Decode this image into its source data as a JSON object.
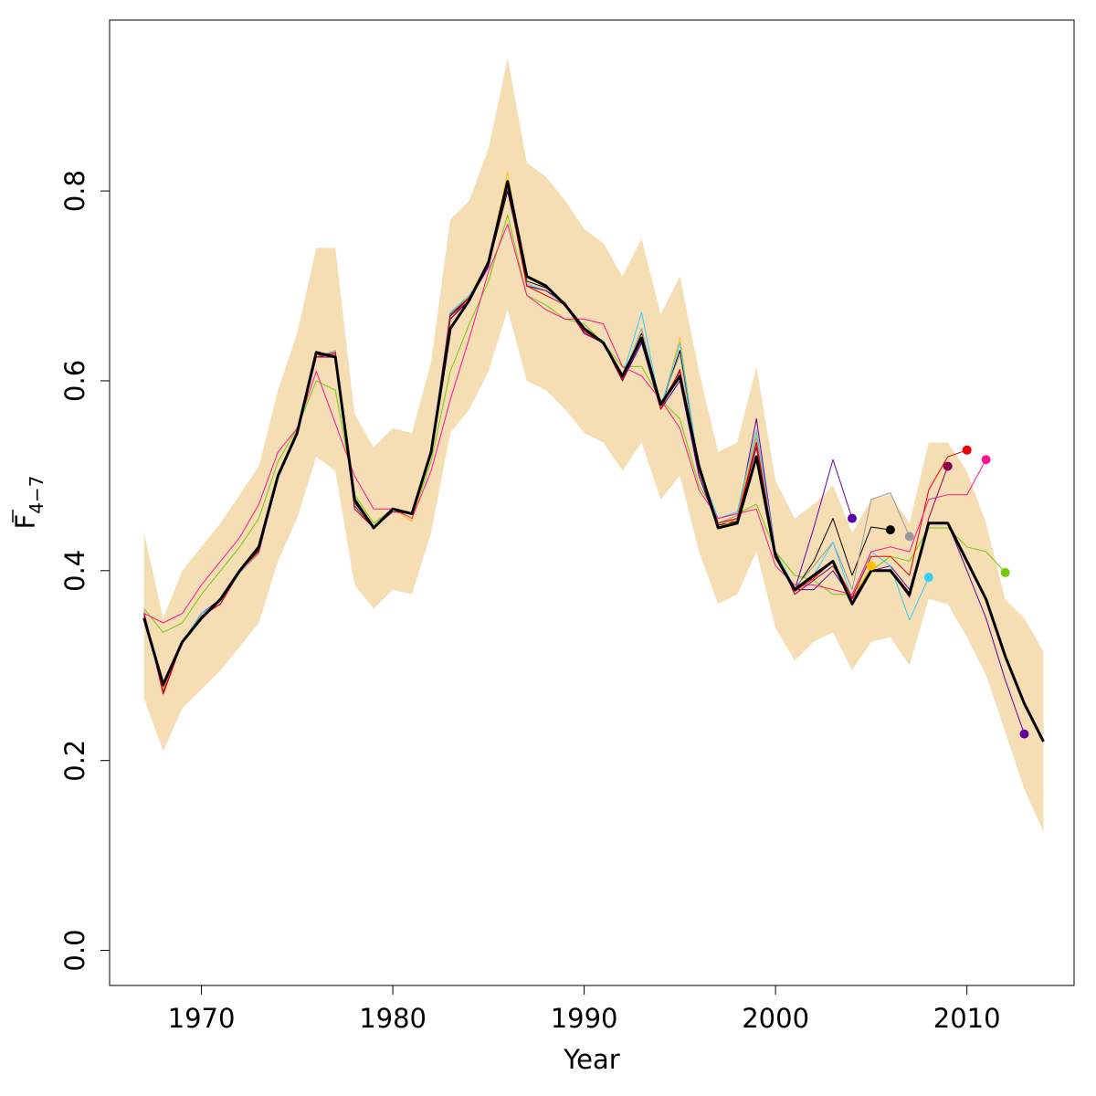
{
  "chart_data": {
    "type": "line",
    "title": "",
    "xlabel": "Year",
    "ylabel": {
      "main": "F",
      "subscript": "4−7",
      "overbar": true
    },
    "xlim": [
      1965.2,
      2015.6
    ],
    "ylim": [
      -0.037,
      0.98
    ],
    "xticks": [
      1970,
      1980,
      1990,
      2000,
      2010
    ],
    "xtick_labels": [
      "1970",
      "1980",
      "1990",
      "2000",
      "2010"
    ],
    "yticks": [
      0.0,
      0.2,
      0.4,
      0.6,
      0.8
    ],
    "ytick_labels": [
      "0.0",
      "0.2",
      "0.4",
      "0.6",
      "0.8"
    ],
    "grid": false,
    "legend": "none",
    "band": {
      "color": "#F5DEB3",
      "years": [
        1967,
        1968,
        1969,
        1970,
        1971,
        1972,
        1973,
        1974,
        1975,
        1976,
        1977,
        1978,
        1979,
        1980,
        1981,
        1982,
        1983,
        1984,
        1985,
        1986,
        1987,
        1988,
        1989,
        1990,
        1991,
        1992,
        1993,
        1994,
        1995,
        1996,
        1997,
        1998,
        1999,
        2000,
        2001,
        2002,
        2003,
        2004,
        2005,
        2006,
        2007,
        2008,
        2009,
        2010,
        2011,
        2012,
        2013,
        2014
      ],
      "upper": [
        0.44,
        0.35,
        0.4,
        0.425,
        0.45,
        0.48,
        0.51,
        0.59,
        0.65,
        0.74,
        0.74,
        0.565,
        0.53,
        0.55,
        0.545,
        0.62,
        0.77,
        0.79,
        0.845,
        0.94,
        0.83,
        0.815,
        0.79,
        0.76,
        0.745,
        0.71,
        0.75,
        0.67,
        0.71,
        0.61,
        0.525,
        0.535,
        0.615,
        0.495,
        0.455,
        0.47,
        0.49,
        0.44,
        0.475,
        0.48,
        0.45,
        0.535,
        0.535,
        0.505,
        0.45,
        0.37,
        0.35,
        0.315
      ],
      "lower": [
        0.265,
        0.21,
        0.255,
        0.275,
        0.295,
        0.32,
        0.345,
        0.41,
        0.455,
        0.52,
        0.505,
        0.385,
        0.36,
        0.38,
        0.375,
        0.44,
        0.545,
        0.57,
        0.61,
        0.675,
        0.6,
        0.59,
        0.57,
        0.545,
        0.535,
        0.505,
        0.535,
        0.475,
        0.5,
        0.42,
        0.365,
        0.375,
        0.42,
        0.34,
        0.305,
        0.325,
        0.335,
        0.295,
        0.325,
        0.33,
        0.3,
        0.37,
        0.365,
        0.33,
        0.29,
        0.23,
        0.17,
        0.125
      ]
    },
    "series": [
      {
        "color": "#000000",
        "width": 3,
        "x": [
          1967,
          1968,
          1969,
          1970,
          1971,
          1972,
          1973,
          1974,
          1975,
          1976,
          1977,
          1978,
          1979,
          1980,
          1981,
          1982,
          1983,
          1984,
          1985,
          1986,
          1987,
          1988,
          1989,
          1990,
          1991,
          1992,
          1993,
          1994,
          1995,
          1996,
          1997,
          1998,
          1999,
          2000,
          2001,
          2002,
          2003,
          2004,
          2005,
          2006,
          2007,
          2008,
          2009,
          2010,
          2011,
          2012,
          2013,
          2014
        ],
        "y": [
          0.35,
          0.28,
          0.325,
          0.35,
          0.37,
          0.4,
          0.425,
          0.5,
          0.545,
          0.63,
          0.625,
          0.475,
          0.445,
          0.465,
          0.46,
          0.525,
          0.655,
          0.685,
          0.725,
          0.81,
          0.71,
          0.7,
          0.68,
          0.655,
          0.64,
          0.605,
          0.645,
          0.575,
          0.605,
          0.51,
          0.445,
          0.45,
          0.52,
          0.415,
          0.38,
          0.395,
          0.41,
          0.365,
          0.4,
          0.4,
          0.375,
          0.45,
          0.45,
          0.41,
          0.37,
          0.31,
          0.26,
          0.22
        ],
        "end_marker": false
      },
      {
        "color": "#76C80A",
        "width": 1,
        "x": [
          1967,
          1968,
          1969,
          1970,
          1971,
          1972,
          1973,
          1974,
          1975,
          1976,
          1977,
          1978,
          1979,
          1980,
          1981,
          1982,
          1983,
          1984,
          1985,
          1986,
          1987,
          1988,
          1989,
          1990,
          1991,
          1992,
          1993,
          1994,
          1995,
          1996,
          1997,
          1998,
          1999,
          2000,
          2001,
          2002,
          2003,
          2004,
          2005,
          2006,
          2007,
          2008,
          2009,
          2010,
          2011,
          2012
        ],
        "y": [
          0.36,
          0.335,
          0.345,
          0.375,
          0.4,
          0.425,
          0.455,
          0.515,
          0.55,
          0.6,
          0.59,
          0.48,
          0.45,
          0.465,
          0.455,
          0.515,
          0.61,
          0.66,
          0.705,
          0.775,
          0.69,
          0.68,
          0.665,
          0.66,
          0.64,
          0.615,
          0.615,
          0.58,
          0.56,
          0.49,
          0.455,
          0.46,
          0.47,
          0.42,
          0.395,
          0.39,
          0.375,
          0.375,
          0.4,
          0.415,
          0.41,
          0.445,
          0.445,
          0.425,
          0.42,
          0.398
        ],
        "end_marker": true
      },
      {
        "color": "#660099",
        "width": 1,
        "x": [
          1967,
          1968,
          1969,
          1970,
          1971,
          1972,
          1973,
          1974,
          1975,
          1976,
          1977,
          1978,
          1979,
          1980,
          1981,
          1982,
          1983,
          1984,
          1985,
          1986,
          1987,
          1988,
          1989,
          1990,
          1991,
          1992,
          1993,
          1994,
          1995,
          1996,
          1997,
          1998,
          1999,
          2000,
          2001,
          2002,
          2003,
          2004,
          2005,
          2006,
          2007,
          2008,
          2009,
          2010,
          2011,
          2012,
          2013
        ],
        "y": [
          0.355,
          0.275,
          0.325,
          0.355,
          0.37,
          0.4,
          0.42,
          0.5,
          0.545,
          0.625,
          0.625,
          0.47,
          0.445,
          0.465,
          0.46,
          0.525,
          0.665,
          0.685,
          0.72,
          0.81,
          0.7,
          0.695,
          0.68,
          0.65,
          0.64,
          0.6,
          0.64,
          0.57,
          0.6,
          0.5,
          0.445,
          0.455,
          0.56,
          0.42,
          0.38,
          0.38,
          0.4,
          0.37,
          0.4,
          0.405,
          0.38,
          0.45,
          0.45,
          0.4,
          0.35,
          0.285,
          0.228
        ],
        "end_marker": true
      },
      {
        "color": "#5B00A8",
        "width": 1,
        "x": [
          1967,
          1968,
          1969,
          1970,
          1971,
          1972,
          1973,
          1974,
          1975,
          1976,
          1977,
          1978,
          1979,
          1980,
          1981,
          1982,
          1983,
          1984,
          1985,
          1986,
          1987,
          1988,
          1989,
          1990,
          1991,
          1992,
          1993,
          1994,
          1995,
          1996,
          1997,
          1998,
          1999,
          2000,
          2001,
          2002,
          2003,
          2004
        ],
        "y": [
          0.355,
          0.275,
          0.325,
          0.355,
          0.37,
          0.4,
          0.42,
          0.5,
          0.545,
          0.625,
          0.625,
          0.47,
          0.445,
          0.465,
          0.46,
          0.525,
          0.665,
          0.685,
          0.72,
          0.81,
          0.7,
          0.695,
          0.68,
          0.65,
          0.64,
          0.6,
          0.64,
          0.57,
          0.6,
          0.5,
          0.445,
          0.455,
          0.52,
          0.42,
          0.38,
          0.445,
          0.517,
          0.455
        ],
        "end_marker": true
      },
      {
        "color": "#000000",
        "width": 1,
        "x": [
          1967,
          1968,
          1969,
          1970,
          1971,
          1972,
          1973,
          1974,
          1975,
          1976,
          1977,
          1978,
          1979,
          1980,
          1981,
          1982,
          1983,
          1984,
          1985,
          1986,
          1987,
          1988,
          1989,
          1990,
          1991,
          1992,
          1993,
          1994,
          1995,
          1996,
          1997,
          1998,
          1999,
          2000,
          2001,
          2002,
          2003,
          2004,
          2005,
          2006
        ],
        "y": [
          0.352,
          0.278,
          0.325,
          0.352,
          0.368,
          0.4,
          0.422,
          0.5,
          0.545,
          0.628,
          0.625,
          0.472,
          0.445,
          0.465,
          0.46,
          0.525,
          0.668,
          0.688,
          0.722,
          0.8,
          0.705,
          0.698,
          0.682,
          0.652,
          0.642,
          0.602,
          0.65,
          0.572,
          0.632,
          0.505,
          0.448,
          0.452,
          0.535,
          0.418,
          0.38,
          0.41,
          0.455,
          0.395,
          0.446,
          0.443
        ],
        "end_marker": true
      },
      {
        "color": "#999999",
        "width": 1,
        "x": [
          1967,
          1968,
          1969,
          1970,
          1971,
          1972,
          1973,
          1974,
          1975,
          1976,
          1977,
          1978,
          1979,
          1980,
          1981,
          1982,
          1983,
          1984,
          1985,
          1986,
          1987,
          1988,
          1989,
          1990,
          1991,
          1992,
          1993,
          1994,
          1995,
          1996,
          1997,
          1998,
          1999,
          2000,
          2001,
          2002,
          2003,
          2004,
          2005,
          2006,
          2007
        ],
        "y": [
          0.358,
          0.272,
          0.325,
          0.355,
          0.365,
          0.398,
          0.418,
          0.5,
          0.545,
          0.625,
          0.632,
          0.468,
          0.445,
          0.465,
          0.46,
          0.525,
          0.672,
          0.69,
          0.722,
          0.805,
          0.7,
          0.695,
          0.68,
          0.652,
          0.642,
          0.602,
          0.655,
          0.575,
          0.628,
          0.505,
          0.45,
          0.458,
          0.54,
          0.42,
          0.382,
          0.405,
          0.43,
          0.38,
          0.475,
          0.482,
          0.436
        ],
        "end_marker": true
      },
      {
        "color": "#FFC000",
        "width": 1,
        "x": [
          1967,
          1968,
          1969,
          1970,
          1971,
          1972,
          1973,
          1974,
          1975,
          1976,
          1977,
          1978,
          1979,
          1980,
          1981,
          1982,
          1983,
          1984,
          1985,
          1986,
          1987,
          1988,
          1989,
          1990,
          1991,
          1992,
          1993,
          1994,
          1995,
          1996,
          1997,
          1998,
          1999,
          2000,
          2001,
          2002,
          2003,
          2004,
          2005
        ],
        "y": [
          0.355,
          0.275,
          0.325,
          0.352,
          0.365,
          0.4,
          0.42,
          0.5,
          0.545,
          0.625,
          0.63,
          0.47,
          0.445,
          0.465,
          0.452,
          0.525,
          0.67,
          0.69,
          0.725,
          0.82,
          0.7,
          0.69,
          0.68,
          0.652,
          0.64,
          0.6,
          0.648,
          0.57,
          0.645,
          0.505,
          0.445,
          0.455,
          0.545,
          0.42,
          0.38,
          0.395,
          0.41,
          0.37,
          0.405
        ],
        "end_marker": true
      },
      {
        "color": "#33CCFF",
        "width": 1,
        "x": [
          1967,
          1968,
          1969,
          1970,
          1971,
          1972,
          1973,
          1974,
          1975,
          1976,
          1977,
          1978,
          1979,
          1980,
          1981,
          1982,
          1983,
          1984,
          1985,
          1986,
          1987,
          1988,
          1989,
          1990,
          1991,
          1992,
          1993,
          1994,
          1995,
          1996,
          1997,
          1998,
          1999,
          2000,
          2001,
          2002,
          2003,
          2004,
          2005,
          2006,
          2007,
          2008
        ],
        "y": [
          0.355,
          0.272,
          0.325,
          0.355,
          0.368,
          0.4,
          0.42,
          0.5,
          0.545,
          0.625,
          0.63,
          0.47,
          0.445,
          0.465,
          0.46,
          0.525,
          0.672,
          0.69,
          0.722,
          0.808,
          0.702,
          0.695,
          0.68,
          0.652,
          0.642,
          0.605,
          0.672,
          0.572,
          0.64,
          0.508,
          0.455,
          0.462,
          0.548,
          0.42,
          0.382,
          0.395,
          0.43,
          0.37,
          0.42,
          0.405,
          0.348,
          0.393
        ],
        "end_marker": true
      },
      {
        "color": "#8B0050",
        "width": 1,
        "x": [
          1967,
          1968,
          1969,
          1970,
          1971,
          1972,
          1973,
          1974,
          1975,
          1976,
          1977,
          1978,
          1979,
          1980,
          1981,
          1982,
          1983,
          1984,
          1985,
          1986,
          1987,
          1988,
          1989,
          1990,
          1991,
          1992,
          1993,
          1994,
          1995,
          1996,
          1997,
          1998,
          1999,
          2000,
          2001,
          2002,
          2003,
          2004,
          2005,
          2006,
          2007,
          2008,
          2009
        ],
        "y": [
          0.355,
          0.27,
          0.325,
          0.352,
          0.365,
          0.4,
          0.42,
          0.5,
          0.545,
          0.625,
          0.63,
          0.465,
          0.445,
          0.462,
          0.46,
          0.525,
          0.67,
          0.688,
          0.722,
          0.805,
          0.7,
          0.695,
          0.682,
          0.65,
          0.64,
          0.6,
          0.645,
          0.575,
          0.61,
          0.505,
          0.45,
          0.455,
          0.53,
          0.42,
          0.375,
          0.39,
          0.405,
          0.37,
          0.4,
          0.4,
          0.372,
          0.455,
          0.51
        ],
        "end_marker": true
      },
      {
        "color": "#EE0000",
        "width": 1,
        "x": [
          1967,
          1968,
          1969,
          1970,
          1971,
          1972,
          1973,
          1974,
          1975,
          1976,
          1977,
          1978,
          1979,
          1980,
          1981,
          1982,
          1983,
          1984,
          1985,
          1986,
          1987,
          1988,
          1989,
          1990,
          1991,
          1992,
          1993,
          1994,
          1995,
          1996,
          1997,
          1998,
          1999,
          2000,
          2001,
          2002,
          2003,
          2004,
          2005,
          2006,
          2007,
          2008,
          2009,
          2010
        ],
        "y": [
          0.355,
          0.272,
          0.325,
          0.352,
          0.365,
          0.4,
          0.42,
          0.5,
          0.545,
          0.625,
          0.628,
          0.468,
          0.445,
          0.465,
          0.46,
          0.525,
          0.665,
          0.688,
          0.722,
          0.805,
          0.7,
          0.69,
          0.68,
          0.652,
          0.64,
          0.602,
          0.645,
          0.57,
          0.612,
          0.51,
          0.45,
          0.455,
          0.535,
          0.418,
          0.378,
          0.392,
          0.41,
          0.372,
          0.415,
          0.415,
          0.395,
          0.485,
          0.52,
          0.527
        ],
        "end_marker": true
      },
      {
        "color": "#FF1493",
        "width": 1,
        "x": [
          1967,
          1968,
          1969,
          1970,
          1971,
          1972,
          1973,
          1974,
          1975,
          1976,
          1977,
          1978,
          1979,
          1980,
          1981,
          1982,
          1983,
          1984,
          1985,
          1986,
          1987,
          1988,
          1989,
          1990,
          1991,
          1992,
          1993,
          1994,
          1995,
          1996,
          1997,
          1998,
          1999,
          2000,
          2001,
          2002,
          2003,
          2004,
          2005,
          2006,
          2007,
          2008,
          2009,
          2010,
          2011
        ],
        "y": [
          0.355,
          0.345,
          0.355,
          0.385,
          0.41,
          0.435,
          0.47,
          0.525,
          0.55,
          0.61,
          0.555,
          0.5,
          0.465,
          0.465,
          0.455,
          0.505,
          0.58,
          0.645,
          0.715,
          0.765,
          0.69,
          0.675,
          0.665,
          0.665,
          0.66,
          0.615,
          0.605,
          0.58,
          0.55,
          0.485,
          0.455,
          0.46,
          0.465,
          0.405,
          0.385,
          0.385,
          0.38,
          0.375,
          0.42,
          0.425,
          0.42,
          0.475,
          0.48,
          0.48,
          0.517
        ],
        "end_marker": true
      }
    ]
  }
}
